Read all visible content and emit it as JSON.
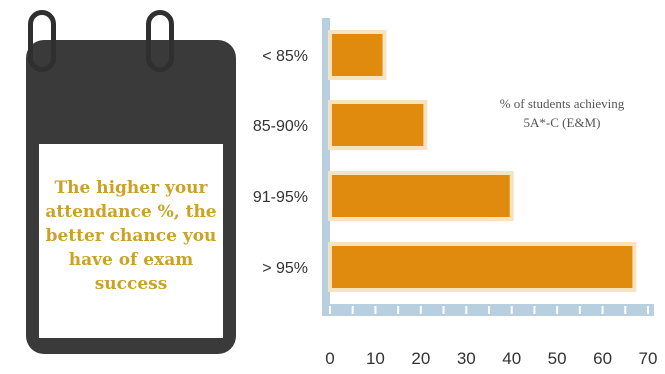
{
  "callout": {
    "text": "The higher your attendance %, the better chance you have of exam success",
    "text_color": "#c9a227",
    "calendar_color": "#3a3a3a"
  },
  "chart_data": {
    "type": "bar",
    "orientation": "horizontal",
    "categories": [
      "< 85%",
      "85-90%",
      "91-95%",
      "> 95%"
    ],
    "values": [
      12,
      21,
      40,
      67
    ],
    "series_label": [
      "% of students achieving",
      "5A*-C (E&M)"
    ],
    "xlim": [
      0,
      70
    ],
    "xticks": [
      "0",
      "10",
      "20",
      "30",
      "40",
      "50",
      "60",
      "70"
    ],
    "bar_color": "#e08a0e",
    "bar_border_color": "#f7e3c0",
    "axis_color": "#b8cfe0",
    "grid": false,
    "legend_position": "top-right"
  }
}
